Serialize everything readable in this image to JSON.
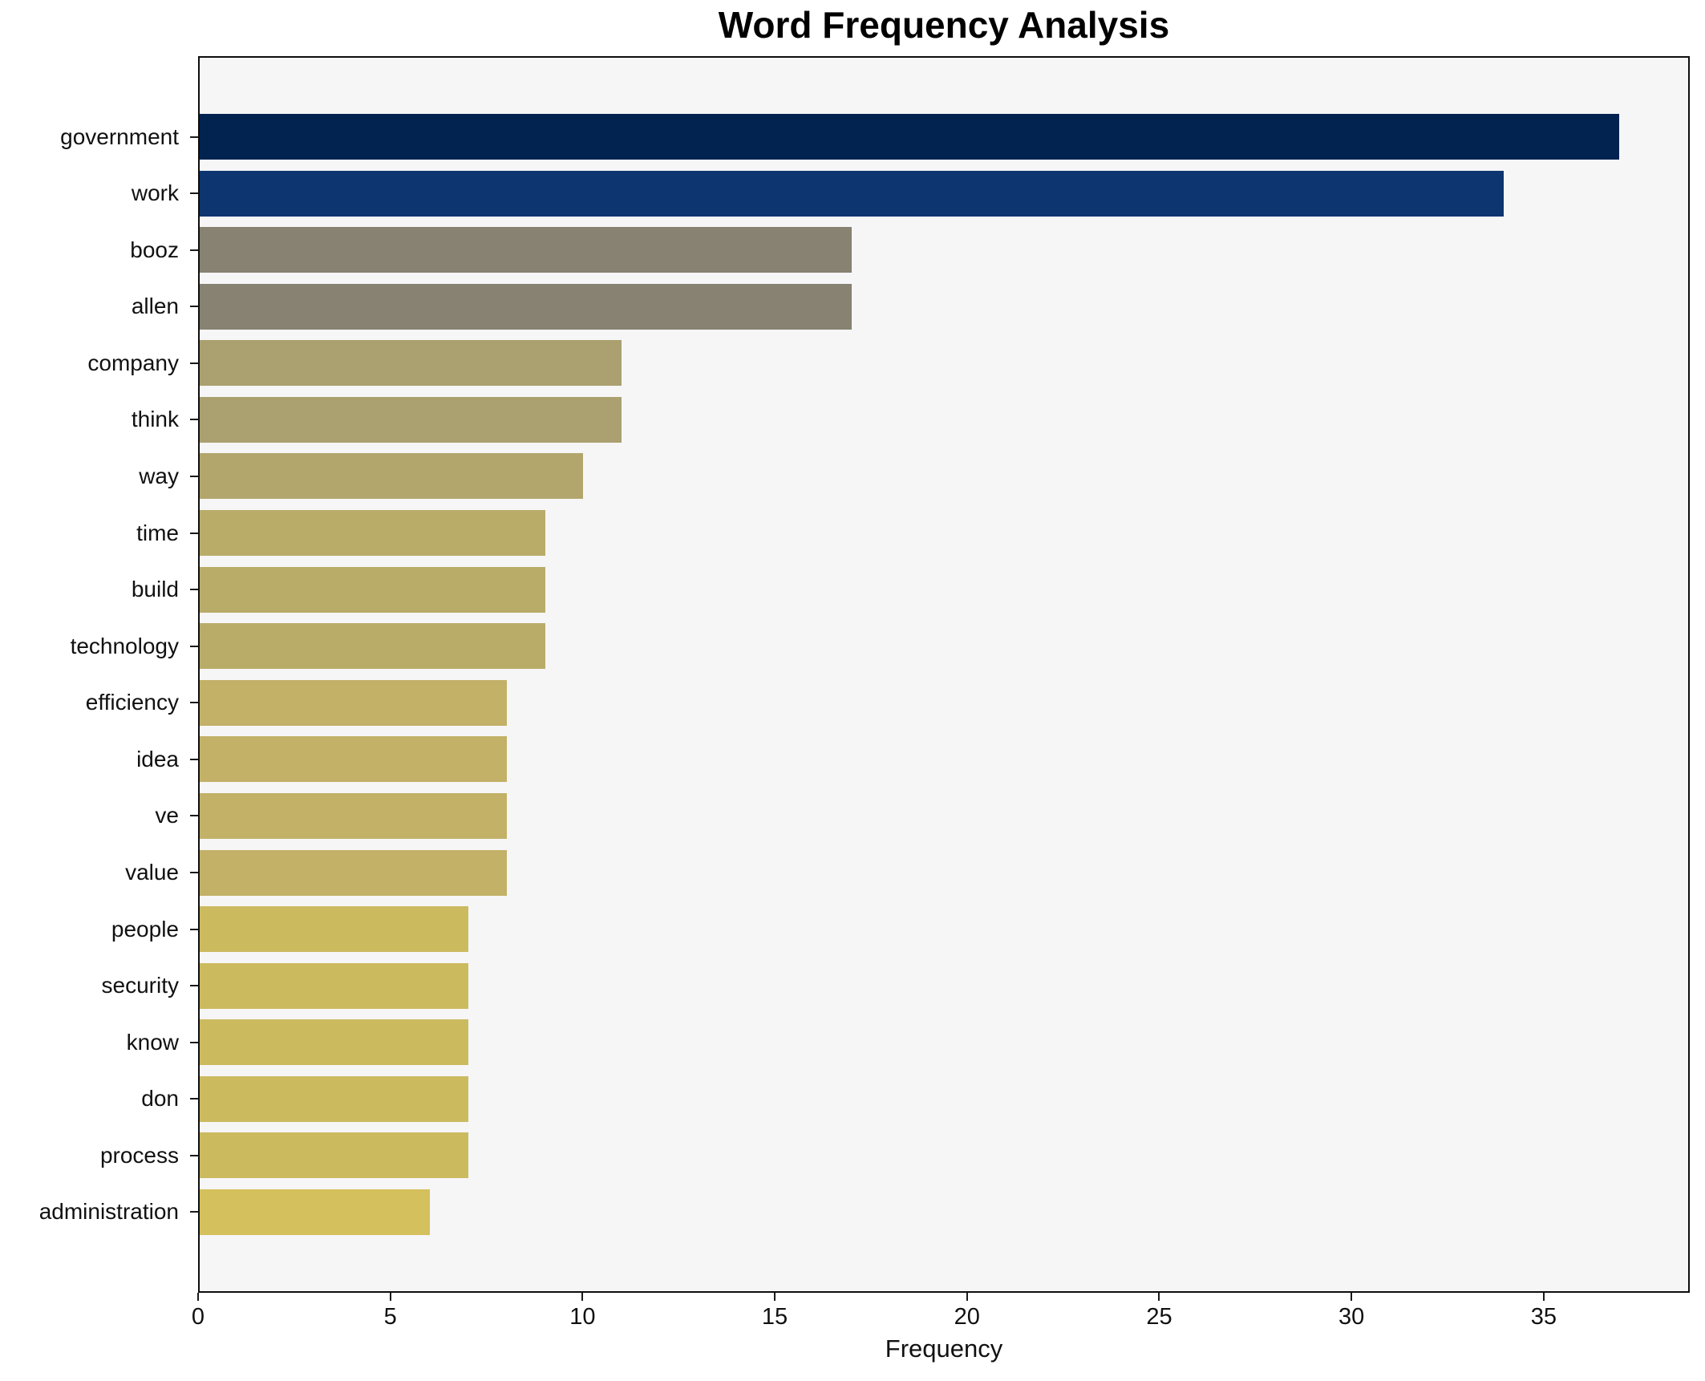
{
  "chart_data": {
    "type": "bar",
    "orientation": "horizontal",
    "title": "Word Frequency Analysis",
    "xlabel": "Frequency",
    "ylabel": "",
    "categories": [
      "government",
      "work",
      "booz",
      "allen",
      "company",
      "think",
      "way",
      "time",
      "build",
      "technology",
      "efficiency",
      "idea",
      "ve",
      "value",
      "people",
      "security",
      "know",
      "don",
      "process",
      "administration"
    ],
    "values": [
      37,
      34,
      17,
      17,
      11,
      11,
      10,
      9,
      9,
      9,
      8,
      8,
      8,
      8,
      7,
      7,
      7,
      7,
      7,
      6
    ],
    "bar_colors": [
      "#022350",
      "#0d356f",
      "#878271",
      "#878271",
      "#aba06f",
      "#aba06f",
      "#b2a66d",
      "#b9ac69",
      "#b9ac69",
      "#b9ac69",
      "#c2b167",
      "#c2b167",
      "#c2b167",
      "#c2b167",
      "#ccba5f",
      "#ccba5f",
      "#ccba5f",
      "#ccba5f",
      "#ccba5f",
      "#d4c05c"
    ],
    "xticks": [
      0,
      5,
      10,
      15,
      20,
      25,
      30,
      35
    ],
    "xlim": [
      0,
      38.8
    ],
    "grid": false,
    "legend": null,
    "plot_background": "#f6f6f7",
    "figure_background": "#ffffff",
    "spine_color": "#0e0e0e",
    "tick_color": "#1a1a1a",
    "title_color": "#000000"
  }
}
